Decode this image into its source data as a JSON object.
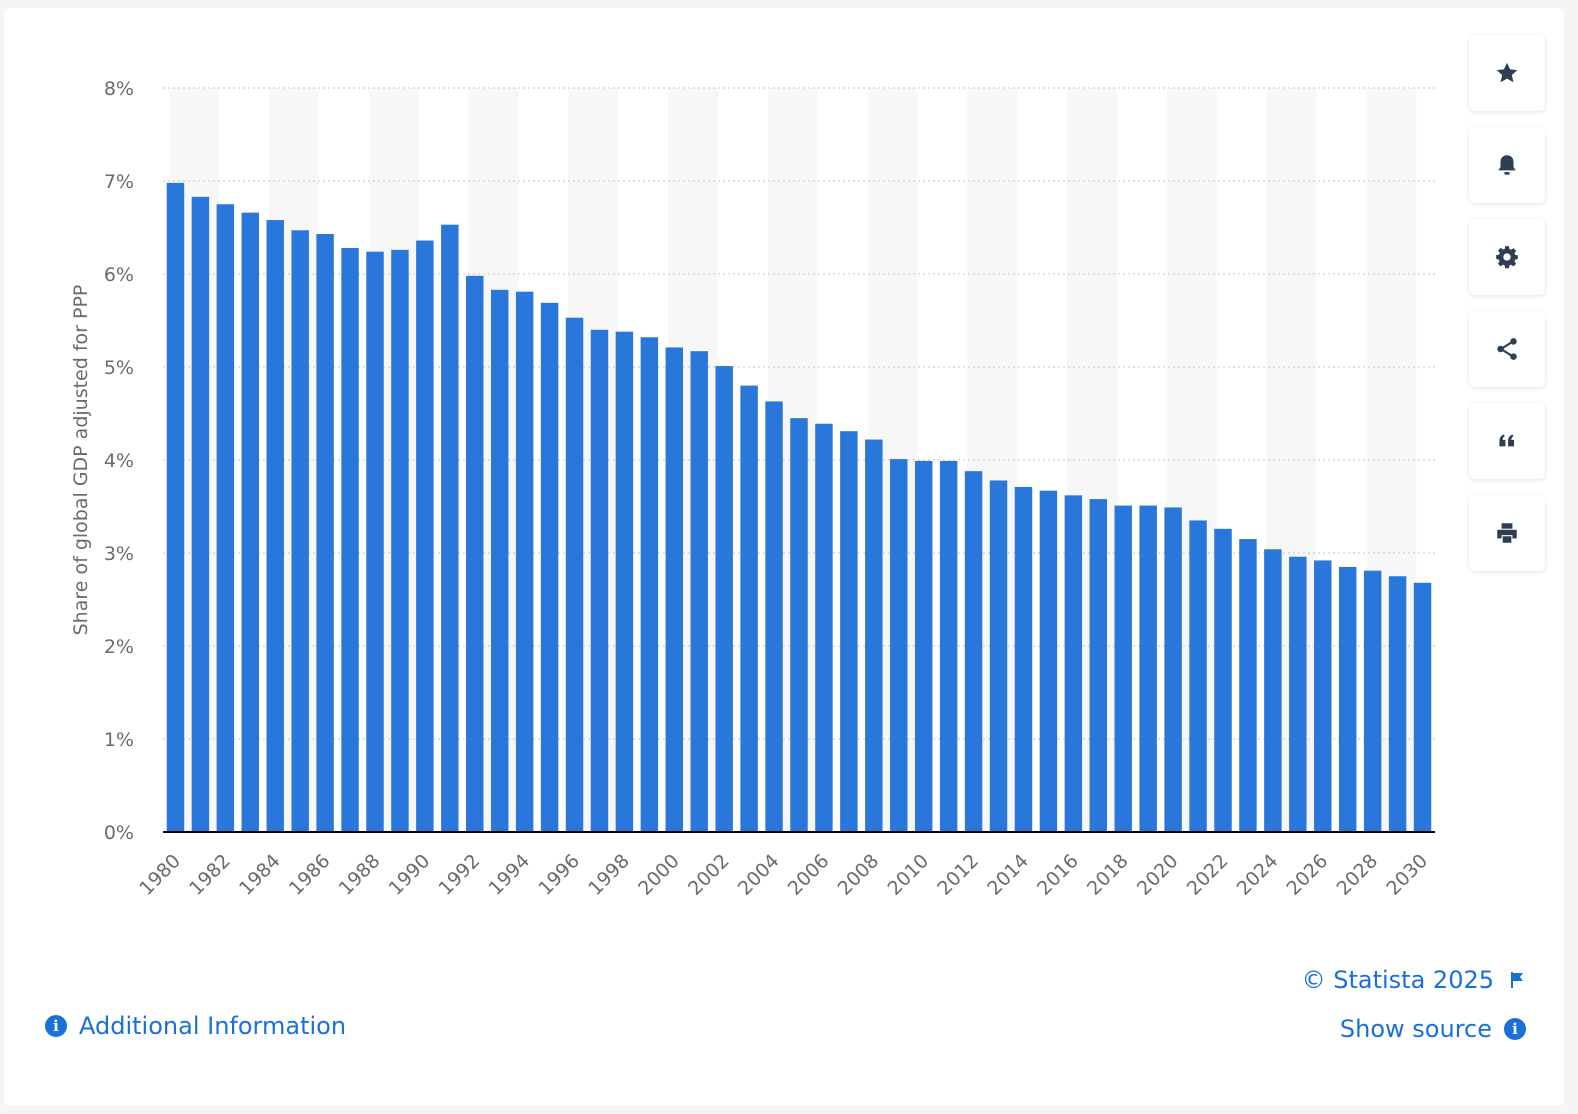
{
  "chart_data": {
    "type": "bar",
    "title": "",
    "xlabel": "",
    "ylabel": "Share of global GDP adjusted for PPP",
    "ylim": [
      0,
      8
    ],
    "yticks": [
      "0%",
      "1%",
      "2%",
      "3%",
      "4%",
      "5%",
      "6%",
      "7%",
      "8%"
    ],
    "categories": [
      "1980",
      "1981",
      "1982",
      "1983",
      "1984",
      "1985",
      "1986",
      "1987",
      "1988",
      "1989",
      "1990",
      "1991",
      "1992",
      "1993",
      "1994",
      "1995",
      "1996",
      "1997",
      "1998",
      "1999",
      "2000",
      "2001",
      "2002",
      "2003",
      "2004",
      "2005",
      "2006",
      "2007",
      "2008",
      "2009",
      "2010",
      "2011",
      "2012",
      "2013",
      "2014",
      "2015",
      "2016",
      "2017",
      "2018",
      "2019",
      "2020",
      "2021",
      "2022",
      "2023",
      "2024",
      "2025",
      "2026",
      "2027",
      "2028",
      "2029",
      "2030"
    ],
    "xtick_labels": [
      "1980",
      "1982",
      "1984",
      "1986",
      "1988",
      "1990",
      "1992",
      "1994",
      "1996",
      "1998",
      "2000",
      "2002",
      "2004",
      "2006",
      "2008",
      "2010",
      "2012",
      "2014",
      "2016",
      "2018",
      "2020",
      "2022",
      "2024",
      "2026",
      "2028",
      "2030"
    ],
    "values": [
      6.98,
      6.83,
      6.75,
      6.66,
      6.58,
      6.47,
      6.43,
      6.28,
      6.24,
      6.26,
      6.36,
      6.53,
      5.98,
      5.83,
      5.81,
      5.69,
      5.53,
      5.4,
      5.38,
      5.32,
      5.21,
      5.17,
      5.01,
      4.8,
      4.63,
      4.45,
      4.39,
      4.31,
      4.22,
      4.01,
      3.99,
      3.99,
      3.88,
      3.78,
      3.71,
      3.67,
      3.62,
      3.58,
      3.51,
      3.51,
      3.49,
      3.35,
      3.26,
      3.15,
      3.04,
      2.96,
      2.92,
      2.85,
      2.81,
      2.75,
      2.68
    ],
    "grid": true,
    "colors": {
      "bar": "#2a77dc",
      "band": "#f7f7f7",
      "grid": "#cfcfcf",
      "axis": "#000000"
    }
  },
  "toolbar": {
    "icons": [
      "star-icon",
      "bell-icon",
      "gear-icon",
      "share-icon",
      "quote-icon",
      "print-icon"
    ]
  },
  "footer": {
    "additional_info": "Additional Information",
    "copyright": "© Statista 2025",
    "show_source": "Show source"
  }
}
